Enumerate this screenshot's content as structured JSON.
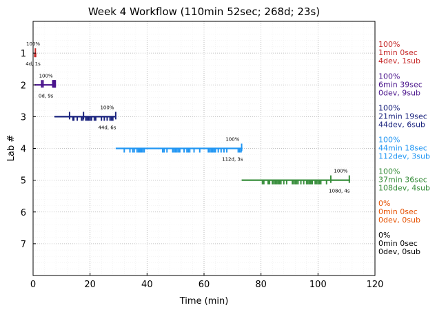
{
  "chart_data": {
    "type": "timeline",
    "title": "Week 4 Workflow (110min 52sec; 268d; 23s)",
    "xlabel": "Time (min)",
    "ylabel": "Lab #",
    "xlim": [
      0,
      120
    ],
    "ylim": [
      0,
      8
    ],
    "y_inverted": true,
    "x_ticks": [
      0,
      20,
      40,
      60,
      80,
      100,
      120
    ],
    "x_tick_labels": [
      "0",
      "20",
      "40",
      "60",
      "80",
      "100",
      "120"
    ],
    "y_ticks": [
      1,
      2,
      3,
      4,
      5,
      6,
      7
    ],
    "y_tick_labels": [
      "1",
      "2",
      "3",
      "4",
      "5",
      "6",
      "7"
    ],
    "grid": true,
    "labs": [
      {
        "lab": 1,
        "color": "#c62828",
        "start": 0.6,
        "end": 1.0,
        "percent_label": "100%",
        "percent_x": 0.0,
        "counts_label": "4d, 1s",
        "counts_x": 0.0,
        "summary": [
          "100%",
          "1min 0sec",
          "4dev, 1sub"
        ],
        "ticks": [
          0.8
        ],
        "ticks_small": [
          0.6,
          0.9
        ]
      },
      {
        "lab": 2,
        "color": "#4a148c",
        "start": 0.5,
        "end": 7.8,
        "percent_label": "100%",
        "percent_x": 4.5,
        "counts_label": "0d, 9s",
        "counts_x": 4.5,
        "summary": [
          "100%",
          "6min 39sec",
          "0dev, 9sub"
        ],
        "ticks": [
          3.0,
          3.5,
          6.9,
          7.1,
          7.3,
          7.5,
          7.7,
          7.8
        ],
        "ticks_small": []
      },
      {
        "lab": 3,
        "color": "#1a237e",
        "start": 7.5,
        "end": 29.2,
        "percent_label": "100%",
        "percent_x": 26.0,
        "counts_label": "44d, 6s",
        "counts_x": 26.0,
        "summary": [
          "100%",
          "21min 19sec",
          "44dev, 6sub"
        ],
        "ticks": [
          12.8,
          17.7,
          29.0
        ],
        "ticks_small": [
          14.0,
          14.3,
          15.5,
          17.0,
          17.5,
          18.5,
          19.0,
          19.5,
          20.0,
          20.5,
          21.5,
          22.0,
          24.0,
          25.0,
          26.0,
          27.0,
          27.5,
          28.0
        ]
      },
      {
        "lab": 4,
        "color": "#2196f3",
        "start": 29.0,
        "end": 73.5,
        "percent_label": "100%",
        "percent_x": 70.0,
        "counts_label": "112d, 3s",
        "counts_x": 70.0,
        "summary": [
          "100%",
          "44min 18sec",
          "112dev, 3sub"
        ],
        "ticks": [
          73.2
        ],
        "ticks_small": [
          32.0,
          34.0,
          35.0,
          35.5,
          36.5,
          37.0,
          37.5,
          38.0,
          38.5,
          39.0,
          45.5,
          46.0,
          47.0,
          49.0,
          49.5,
          50.0,
          50.5,
          51.0,
          51.5,
          53.0,
          54.0,
          54.5,
          55.0,
          56.5,
          58.5,
          61.5,
          62.0,
          62.5,
          63.0,
          63.5,
          64.0,
          65.0,
          66.0,
          67.0,
          68.0,
          72.0,
          72.5,
          73.0
        ]
      },
      {
        "lab": 5,
        "color": "#388e3c",
        "start": 73.2,
        "end": 111.3,
        "percent_label": "100%",
        "percent_x": 108.0,
        "counts_label": "108d, 4s",
        "counts_x": 107.5,
        "summary": [
          "100%",
          "37min 36sec",
          "108dev, 4sub"
        ],
        "ticks": [
          104.5,
          111.0
        ],
        "ticks_small": [
          80.5,
          81.0,
          82.5,
          83.0,
          84.0,
          84.5,
          85.0,
          85.5,
          86.0,
          86.5,
          87.0,
          88.0,
          89.0,
          91.0,
          91.5,
          92.0,
          92.5,
          93.0,
          94.0,
          95.0,
          96.0,
          96.5,
          97.0,
          97.5,
          98.0,
          99.0,
          99.5,
          100.0,
          100.5,
          101.0,
          103.0
        ]
      },
      {
        "lab": 6,
        "color": "#e65100",
        "summary": [
          "0%",
          "0min 0sec",
          "0dev, 0sub"
        ]
      },
      {
        "lab": 7,
        "color": "#000000",
        "summary": [
          "0%",
          "0min 0sec",
          "0dev, 0sub"
        ]
      }
    ]
  }
}
